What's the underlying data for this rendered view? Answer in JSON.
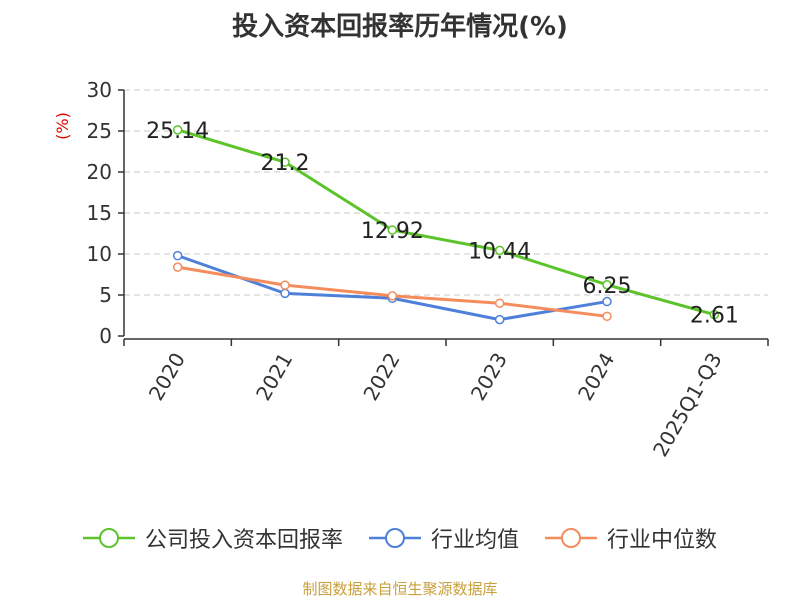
{
  "chart_data": {
    "type": "line",
    "title": "投入资本回报率历年情况(%)",
    "ylabel": "(%)",
    "xlabel": "",
    "categories": [
      "2020",
      "2021",
      "2022",
      "2023",
      "2024",
      "2025Q1-Q3"
    ],
    "ylim": [
      0,
      30
    ],
    "yticks": [
      0,
      5,
      10,
      15,
      20,
      25,
      30
    ],
    "grid": true,
    "legend_position": "bottom",
    "series": [
      {
        "name": "公司投入资本回报率",
        "color": "#5cc42a",
        "values": [
          25.14,
          21.2,
          12.92,
          10.44,
          6.25,
          2.61
        ],
        "data_labels": [
          "25.14",
          "21.2",
          "12.92",
          "10.44",
          "6.25",
          "2.61"
        ]
      },
      {
        "name": "行业均值",
        "color": "#4f80d9",
        "values": [
          9.8,
          5.2,
          4.6,
          2.0,
          4.2,
          null
        ]
      },
      {
        "name": "行业中位数",
        "color": "#f48c5c",
        "values": [
          8.4,
          6.2,
          4.9,
          4.0,
          2.4,
          null
        ]
      }
    ]
  },
  "footer": "制图数据来自恒生聚源数据库"
}
